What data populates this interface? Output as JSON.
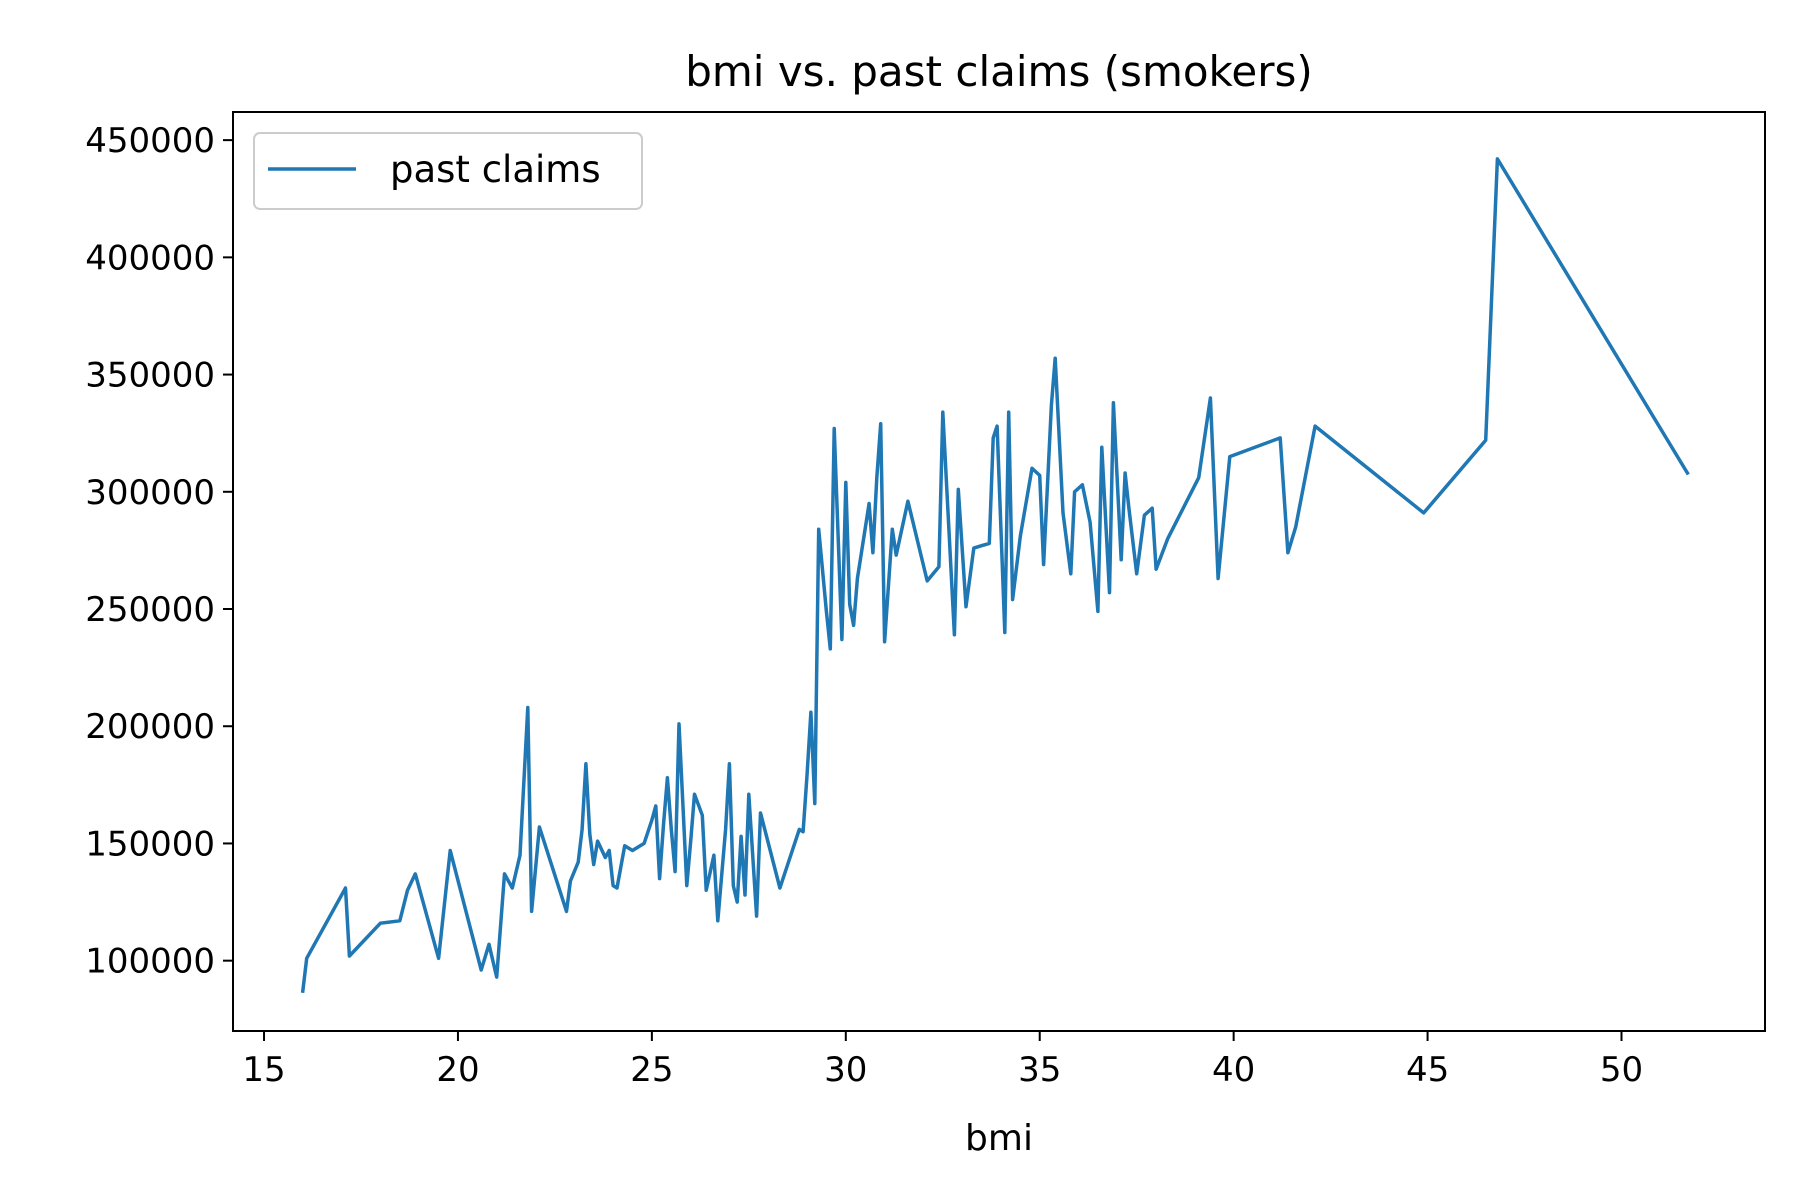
{
  "chart_data": {
    "type": "line",
    "title": "bmi vs. past claims (smokers)",
    "xlabel": "bmi",
    "ylabel": "",
    "xlim": [
      14.2,
      53.7
    ],
    "ylim": [
      70000,
      462000
    ],
    "x_ticks": [
      15,
      20,
      25,
      30,
      35,
      40,
      45,
      50
    ],
    "y_ticks": [
      100000,
      150000,
      200000,
      250000,
      300000,
      350000,
      400000,
      450000
    ],
    "grid": false,
    "legend_position": "top-left",
    "series": [
      {
        "name": "past claims",
        "color": "#1f77b4",
        "x": [
          16.0,
          16.1,
          17.1,
          17.2,
          18.0,
          18.5,
          18.7,
          18.9,
          19.5,
          19.8,
          20.6,
          20.8,
          21.0,
          21.2,
          21.4,
          21.6,
          21.8,
          21.9,
          22.1,
          22.8,
          22.9,
          23.1,
          23.2,
          23.3,
          23.4,
          23.5,
          23.6,
          23.8,
          23.9,
          24.0,
          24.1,
          24.3,
          24.5,
          24.8,
          25.0,
          25.1,
          25.2,
          25.3,
          25.4,
          25.5,
          25.6,
          25.7,
          25.9,
          26.0,
          26.1,
          26.3,
          26.4,
          26.6,
          26.7,
          26.9,
          27.0,
          27.1,
          27.2,
          27.3,
          27.4,
          27.5,
          27.7,
          27.8,
          28.3,
          28.8,
          28.9,
          29.0,
          29.1,
          29.2,
          29.3,
          29.5,
          29.6,
          29.7,
          29.9,
          30.0,
          30.1,
          30.2,
          30.3,
          30.6,
          30.7,
          30.8,
          30.9,
          31.0,
          31.2,
          31.3,
          31.6,
          32.1,
          32.4,
          32.5,
          32.8,
          32.9,
          33.1,
          33.3,
          33.5,
          33.7,
          33.8,
          33.9,
          34.1,
          34.2,
          34.3,
          34.5,
          34.8,
          35.0,
          35.1,
          35.3,
          35.4,
          35.6,
          35.8,
          35.9,
          36.1,
          36.3,
          36.5,
          36.6,
          36.8,
          36.9,
          37.1,
          37.2,
          37.3,
          37.5,
          37.7,
          37.9,
          38.0,
          38.3,
          39.1,
          39.4,
          39.6,
          39.9,
          41.2,
          41.4,
          41.6,
          42.1,
          44.9,
          46.5,
          46.8,
          51.7
        ],
        "values": [
          87000,
          101000,
          131000,
          102000,
          116000,
          117000,
          130000,
          137000,
          101000,
          147000,
          96000,
          107000,
          93000,
          137000,
          131000,
          145000,
          208000,
          121000,
          157000,
          121000,
          134000,
          142000,
          156000,
          184000,
          154000,
          141000,
          151000,
          144000,
          147000,
          132000,
          131000,
          149000,
          147000,
          150000,
          160000,
          166000,
          135000,
          158000,
          178000,
          156000,
          138000,
          201000,
          132000,
          151000,
          171000,
          162000,
          130000,
          145000,
          117000,
          156000,
          184000,
          132000,
          125000,
          153000,
          128000,
          171000,
          119000,
          163000,
          131000,
          156000,
          155000,
          179000,
          206000,
          167000,
          284000,
          249000,
          233000,
          327000,
          237000,
          304000,
          252000,
          243000,
          263000,
          295000,
          274000,
          306000,
          329000,
          236000,
          284000,
          273000,
          296000,
          262000,
          268000,
          334000,
          239000,
          301000,
          251000,
          276000,
          277000,
          278000,
          323000,
          328000,
          240000,
          334000,
          254000,
          281000,
          310000,
          307000,
          269000,
          337000,
          357000,
          291000,
          265000,
          300000,
          303000,
          287000,
          249000,
          319000,
          257000,
          338000,
          271000,
          308000,
          293000,
          265000,
          290000,
          293000,
          267000,
          280000,
          306000,
          340000,
          263000,
          315000,
          323000,
          274000,
          285000,
          328000,
          291000,
          322000,
          442000,
          308000
        ]
      }
    ]
  }
}
